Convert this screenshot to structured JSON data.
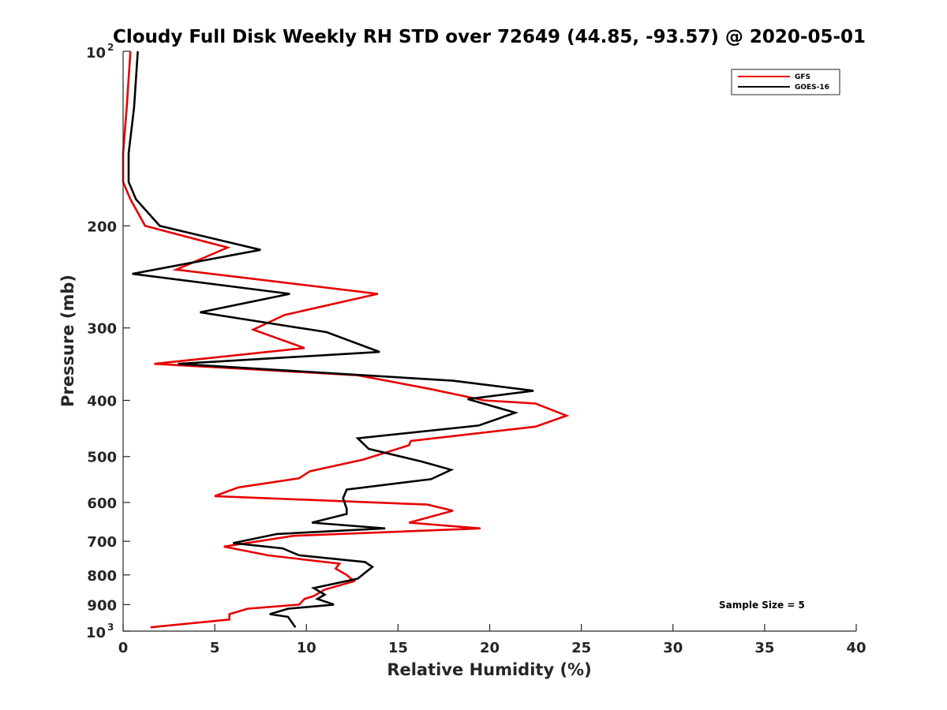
{
  "chart_data": {
    "type": "line",
    "title": "Cloudy Full Disk Weekly RH STD over 72649 (44.85, -93.57) @ 2020-05-01",
    "xlabel": "Relative Humidity (%)",
    "ylabel": "Pressure (mb)",
    "xlim": [
      0,
      40
    ],
    "ylim": [
      100,
      1000
    ],
    "y_scale": "log",
    "y_reversed": true,
    "grid": false,
    "legend_position": "top-right",
    "x_ticks": [
      "0",
      "5",
      "10",
      "15",
      "20",
      "25",
      "30",
      "35",
      "40"
    ],
    "y_ticks": [
      {
        "value": 100,
        "base": "10",
        "exp": "2"
      },
      {
        "value": 200,
        "label": "200"
      },
      {
        "value": 300,
        "label": "300"
      },
      {
        "value": 400,
        "label": "400"
      },
      {
        "value": 500,
        "label": "500"
      },
      {
        "value": 600,
        "label": "600"
      },
      {
        "value": 700,
        "label": "700"
      },
      {
        "value": 800,
        "label": "800"
      },
      {
        "value": 900,
        "label": "900"
      },
      {
        "value": 1000,
        "base": "10",
        "exp": "3"
      }
    ],
    "annotation": "Sample Size = 5",
    "series": [
      {
        "name": "GFS",
        "color": "#e60000",
        "points": [
          [
            0.4,
            100
          ],
          [
            0.2,
            125
          ],
          [
            0.0,
            150
          ],
          [
            0.0,
            168
          ],
          [
            0.4,
            180
          ],
          [
            1.2,
            200
          ],
          [
            5.7,
            218
          ],
          [
            2.9,
            238
          ],
          [
            13.9,
            262
          ],
          [
            8.8,
            285
          ],
          [
            7.1,
            302
          ],
          [
            9.9,
            325
          ],
          [
            1.7,
            346
          ],
          [
            12.8,
            362
          ],
          [
            16.7,
            382
          ],
          [
            19.7,
            400
          ],
          [
            22.5,
            405
          ],
          [
            24.2,
            425
          ],
          [
            22.5,
            444
          ],
          [
            15.7,
            470
          ],
          [
            15.6,
            478
          ],
          [
            13.1,
            506
          ],
          [
            10.2,
            530
          ],
          [
            9.6,
            545
          ],
          [
            6.3,
            565
          ],
          [
            5.0,
            585
          ],
          [
            16.6,
            605
          ],
          [
            18.0,
            620
          ],
          [
            15.6,
            650
          ],
          [
            19.5,
            665
          ],
          [
            9.3,
            685
          ],
          [
            5.5,
            715
          ],
          [
            7.9,
            740
          ],
          [
            11.8,
            765
          ],
          [
            11.6,
            780
          ],
          [
            12.2,
            800
          ],
          [
            12.6,
            820
          ],
          [
            11.0,
            848
          ],
          [
            10.4,
            870
          ],
          [
            9.9,
            880
          ],
          [
            9.6,
            900
          ],
          [
            6.8,
            915
          ],
          [
            5.8,
            935
          ],
          [
            5.8,
            955
          ],
          [
            1.5,
            985
          ]
        ]
      },
      {
        "name": "GOES-16",
        "color": "#000000",
        "points": [
          [
            0.8,
            100
          ],
          [
            0.6,
            125
          ],
          [
            0.3,
            150
          ],
          [
            0.3,
            168
          ],
          [
            0.7,
            180
          ],
          [
            2.0,
            200
          ],
          [
            7.5,
            220
          ],
          [
            0.5,
            242
          ],
          [
            9.1,
            262
          ],
          [
            4.2,
            282
          ],
          [
            11.1,
            305
          ],
          [
            14.0,
            330
          ],
          [
            3.0,
            346
          ],
          [
            18.0,
            370
          ],
          [
            22.4,
            385
          ],
          [
            18.8,
            398
          ],
          [
            21.4,
            420
          ],
          [
            19.4,
            442
          ],
          [
            12.8,
            465
          ],
          [
            13.4,
            485
          ],
          [
            16.3,
            510
          ],
          [
            17.9,
            527
          ],
          [
            16.8,
            547
          ],
          [
            12.2,
            570
          ],
          [
            12.0,
            590
          ],
          [
            12.2,
            615
          ],
          [
            12.2,
            628
          ],
          [
            10.3,
            650
          ],
          [
            14.3,
            665
          ],
          [
            8.4,
            680
          ],
          [
            6.0,
            705
          ],
          [
            8.7,
            720
          ],
          [
            9.6,
            740
          ],
          [
            13.2,
            760
          ],
          [
            13.6,
            775
          ],
          [
            12.8,
            812
          ],
          [
            10.4,
            843
          ],
          [
            11.0,
            865
          ],
          [
            10.6,
            880
          ],
          [
            11.5,
            900
          ],
          [
            9.0,
            915
          ],
          [
            8.0,
            935
          ],
          [
            9.0,
            945
          ],
          [
            9.4,
            985
          ]
        ]
      }
    ]
  }
}
